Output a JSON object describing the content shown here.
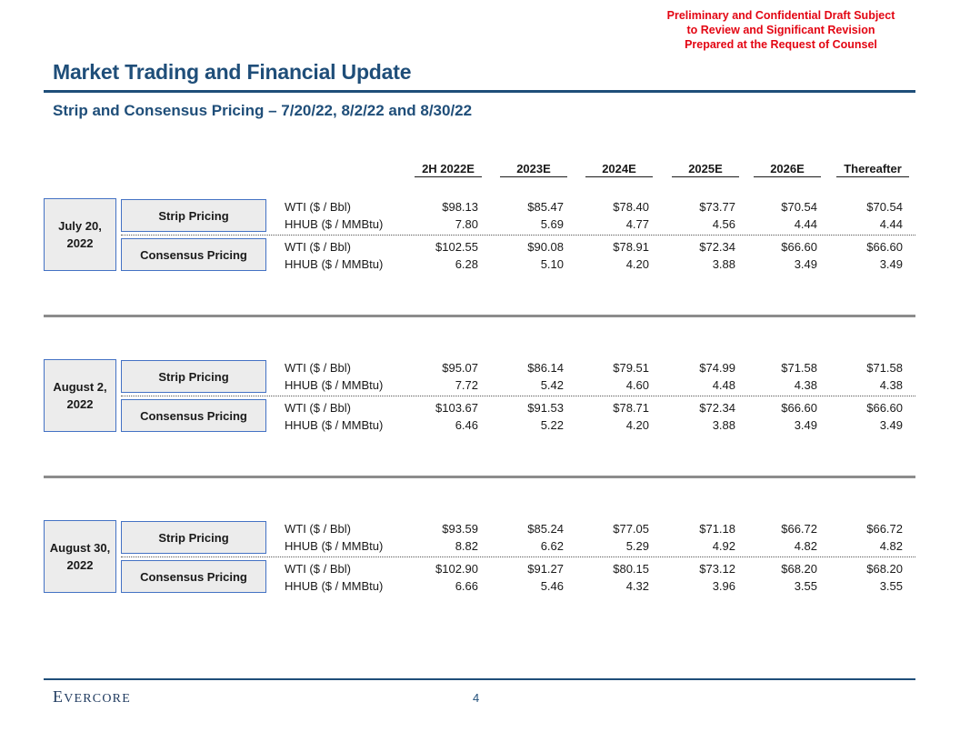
{
  "disclaimer": [
    "Preliminary and Confidential Draft Subject",
    "to Review and Significant Revision",
    "Prepared at the Request of Counsel"
  ],
  "title": "Market Trading and Financial Update",
  "subtitle": "Strip and Consensus Pricing – 7/20/22, 8/2/22 and 8/30/22",
  "columns": [
    "2H 2022E",
    "2023E",
    "2024E",
    "2025E",
    "2026E",
    "Thereafter"
  ],
  "sections": [
    {
      "date": "July 20,\n2022",
      "strip": {
        "label": "Strip Pricing",
        "rows": [
          {
            "label": "WTI ($ / Bbl)",
            "values": [
              "$98.13",
              "$85.47",
              "$78.40",
              "$73.77",
              "$70.54",
              "$70.54"
            ]
          },
          {
            "label": "HHUB ($ / MMBtu)",
            "values": [
              "7.80",
              "5.69",
              "4.77",
              "4.56",
              "4.44",
              "4.44"
            ]
          }
        ]
      },
      "consensus": {
        "label": "Consensus Pricing",
        "rows": [
          {
            "label": "WTI ($ / Bbl)",
            "values": [
              "$102.55",
              "$90.08",
              "$78.91",
              "$72.34",
              "$66.60",
              "$66.60"
            ]
          },
          {
            "label": "HHUB ($ / MMBtu)",
            "values": [
              "6.28",
              "5.10",
              "4.20",
              "3.88",
              "3.49",
              "3.49"
            ]
          }
        ]
      }
    },
    {
      "date": "August 2,\n2022",
      "strip": {
        "label": "Strip Pricing",
        "rows": [
          {
            "label": "WTI ($ / Bbl)",
            "values": [
              "$95.07",
              "$86.14",
              "$79.51",
              "$74.99",
              "$71.58",
              "$71.58"
            ]
          },
          {
            "label": "HHUB ($ / MMBtu)",
            "values": [
              "7.72",
              "5.42",
              "4.60",
              "4.48",
              "4.38",
              "4.38"
            ]
          }
        ]
      },
      "consensus": {
        "label": "Consensus Pricing",
        "rows": [
          {
            "label": "WTI ($ / Bbl)",
            "values": [
              "$103.67",
              "$91.53",
              "$78.71",
              "$72.34",
              "$66.60",
              "$66.60"
            ]
          },
          {
            "label": "HHUB ($ / MMBtu)",
            "values": [
              "6.46",
              "5.22",
              "4.20",
              "3.88",
              "3.49",
              "3.49"
            ]
          }
        ]
      }
    },
    {
      "date": "August 30,\n2022",
      "strip": {
        "label": "Strip Pricing",
        "rows": [
          {
            "label": "WTI ($ / Bbl)",
            "values": [
              "$93.59",
              "$85.24",
              "$77.05",
              "$71.18",
              "$66.72",
              "$66.72"
            ]
          },
          {
            "label": "HHUB ($ / MMBtu)",
            "values": [
              "8.82",
              "6.62",
              "5.29",
              "4.92",
              "4.82",
              "4.82"
            ]
          }
        ]
      },
      "consensus": {
        "label": "Consensus Pricing",
        "rows": [
          {
            "label": "WTI ($ / Bbl)",
            "values": [
              "$102.90",
              "$91.27",
              "$80.15",
              "$73.12",
              "$68.20",
              "$68.20"
            ]
          },
          {
            "label": "HHUB ($ / MMBtu)",
            "values": [
              "6.66",
              "5.46",
              "4.32",
              "3.96",
              "3.55",
              "3.55"
            ]
          }
        ]
      }
    }
  ],
  "footer": {
    "logo": "Evercore",
    "page_number": "4"
  }
}
